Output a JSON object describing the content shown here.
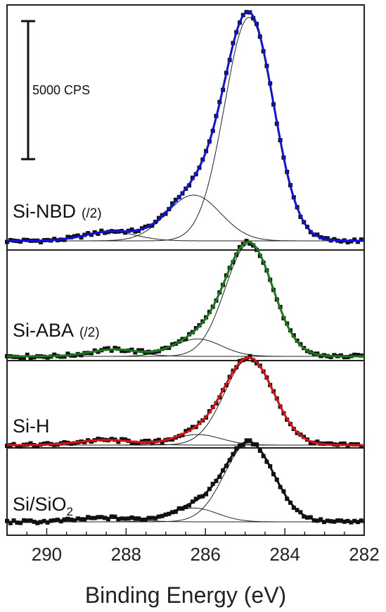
{
  "chart_data": {
    "type": "line",
    "xlabel": "Binding Energy (eV)",
    "xlim": [
      291,
      282
    ],
    "x_reversed": true,
    "xticks": [
      290,
      288,
      286,
      284,
      282
    ],
    "scale_bar": {
      "label": "5000 CPS",
      "counts": 5000
    },
    "grid": false,
    "series": [
      {
        "name": "Si-NBD",
        "suffix": "(/2)",
        "color": "#1010e0",
        "fit_color": "#1010e0",
        "baseline": 0,
        "components": [
          {
            "center": 284.9,
            "sigma": 0.62,
            "height": 6150
          },
          {
            "center": 286.3,
            "sigma": 0.68,
            "height": 1260
          },
          {
            "center": 288.4,
            "sigma": 0.65,
            "height": 250
          }
        ]
      },
      {
        "name": "Si-ABA",
        "suffix": "(/2)",
        "color": "#1a7a1a",
        "fit_color": "#1a7a1a",
        "baseline": 0,
        "components": [
          {
            "center": 284.9,
            "sigma": 0.6,
            "height": 3100
          },
          {
            "center": 286.2,
            "sigma": 0.6,
            "height": 480
          },
          {
            "center": 288.3,
            "sigma": 0.6,
            "height": 190
          }
        ]
      },
      {
        "name": "Si-H",
        "suffix": "",
        "color": "#e01010",
        "fit_color": "#e01010",
        "baseline": 0,
        "components": [
          {
            "center": 284.9,
            "sigma": 0.62,
            "height": 2380
          },
          {
            "center": 286.2,
            "sigma": 0.6,
            "height": 290
          },
          {
            "center": 288.5,
            "sigma": 0.7,
            "height": 140
          }
        ]
      },
      {
        "name": "Si/SiO",
        "subscript": "2",
        "suffix": "",
        "color": "#111111",
        "fit_color": "#111111",
        "baseline": 0,
        "components": [
          {
            "center": 284.9,
            "sigma": 0.62,
            "height": 2180
          },
          {
            "center": 286.3,
            "sigma": 0.6,
            "height": 380
          },
          {
            "center": 288.5,
            "sigma": 0.7,
            "height": 110
          }
        ]
      }
    ]
  }
}
